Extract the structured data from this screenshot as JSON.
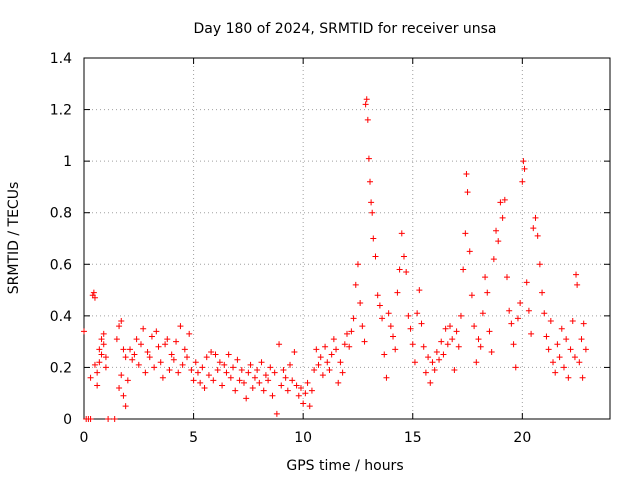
{
  "chart_data": {
    "type": "scatter",
    "title": "Day 180 of 2024, SRMTID for receiver unsa",
    "xlabel": "GPS time / hours",
    "ylabel": "SRMTID / TECUs",
    "xlim": [
      0,
      24
    ],
    "ylim": [
      0,
      1.4
    ],
    "xticks": [
      0,
      5,
      10,
      15,
      20
    ],
    "xtick_labels": [
      "0",
      "5",
      "10",
      "15",
      "20"
    ],
    "yticks": [
      0,
      0.2,
      0.4,
      0.6,
      0.8,
      1.0,
      1.2,
      1.4
    ],
    "ytick_labels": [
      "0",
      "0.2",
      "0.4",
      "0.6",
      "0.8",
      "1",
      "1.2",
      "1.4"
    ],
    "grid": true,
    "marker": "+",
    "color": "#ff0000",
    "series": [
      {
        "name": "SRMTID",
        "points": [
          [
            0.0,
            0.34
          ],
          [
            0.1,
            0.0
          ],
          [
            0.2,
            0.0
          ],
          [
            0.3,
            0.0
          ],
          [
            0.3,
            0.16
          ],
          [
            0.4,
            0.48
          ],
          [
            0.45,
            0.49
          ],
          [
            0.5,
            0.47
          ],
          [
            0.5,
            0.21
          ],
          [
            0.6,
            0.18
          ],
          [
            0.6,
            0.13
          ],
          [
            0.7,
            0.27
          ],
          [
            0.7,
            0.22
          ],
          [
            0.8,
            0.31
          ],
          [
            0.8,
            0.25
          ],
          [
            0.9,
            0.29
          ],
          [
            0.9,
            0.33
          ],
          [
            1.0,
            0.2
          ],
          [
            1.0,
            0.24
          ],
          [
            1.1,
            0.0
          ],
          [
            1.4,
            0.0
          ],
          [
            1.5,
            0.31
          ],
          [
            1.6,
            0.36
          ],
          [
            1.6,
            0.12
          ],
          [
            1.7,
            0.17
          ],
          [
            1.7,
            0.38
          ],
          [
            1.8,
            0.27
          ],
          [
            1.8,
            0.09
          ],
          [
            1.9,
            0.05
          ],
          [
            1.9,
            0.24
          ],
          [
            2.0,
            0.15
          ],
          [
            2.1,
            0.27
          ],
          [
            2.2,
            0.23
          ],
          [
            2.3,
            0.25
          ],
          [
            2.4,
            0.31
          ],
          [
            2.5,
            0.21
          ],
          [
            2.6,
            0.29
          ],
          [
            2.7,
            0.35
          ],
          [
            2.8,
            0.18
          ],
          [
            2.9,
            0.26
          ],
          [
            3.0,
            0.24
          ],
          [
            3.1,
            0.32
          ],
          [
            3.2,
            0.2
          ],
          [
            3.3,
            0.34
          ],
          [
            3.4,
            0.28
          ],
          [
            3.5,
            0.22
          ],
          [
            3.6,
            0.16
          ],
          [
            3.7,
            0.29
          ],
          [
            3.8,
            0.31
          ],
          [
            3.9,
            0.19
          ],
          [
            4.0,
            0.25
          ],
          [
            4.1,
            0.23
          ],
          [
            4.2,
            0.3
          ],
          [
            4.3,
            0.18
          ],
          [
            4.4,
            0.36
          ],
          [
            4.5,
            0.21
          ],
          [
            4.6,
            0.27
          ],
          [
            4.7,
            0.24
          ],
          [
            4.8,
            0.33
          ],
          [
            4.9,
            0.19
          ],
          [
            5.0,
            0.15
          ],
          [
            5.1,
            0.22
          ],
          [
            5.2,
            0.18
          ],
          [
            5.3,
            0.14
          ],
          [
            5.4,
            0.2
          ],
          [
            5.5,
            0.12
          ],
          [
            5.6,
            0.24
          ],
          [
            5.7,
            0.17
          ],
          [
            5.8,
            0.26
          ],
          [
            5.9,
            0.15
          ],
          [
            6.0,
            0.25
          ],
          [
            6.1,
            0.19
          ],
          [
            6.2,
            0.22
          ],
          [
            6.3,
            0.13
          ],
          [
            6.4,
            0.21
          ],
          [
            6.5,
            0.18
          ],
          [
            6.6,
            0.25
          ],
          [
            6.7,
            0.16
          ],
          [
            6.8,
            0.2
          ],
          [
            6.9,
            0.11
          ],
          [
            7.0,
            0.23
          ],
          [
            7.1,
            0.15
          ],
          [
            7.2,
            0.19
          ],
          [
            7.3,
            0.14
          ],
          [
            7.4,
            0.08
          ],
          [
            7.5,
            0.18
          ],
          [
            7.6,
            0.21
          ],
          [
            7.7,
            0.12
          ],
          [
            7.8,
            0.16
          ],
          [
            7.9,
            0.19
          ],
          [
            8.0,
            0.14
          ],
          [
            8.1,
            0.22
          ],
          [
            8.2,
            0.11
          ],
          [
            8.3,
            0.17
          ],
          [
            8.4,
            0.15
          ],
          [
            8.5,
            0.2
          ],
          [
            8.6,
            0.09
          ],
          [
            8.7,
            0.18
          ],
          [
            8.8,
            0.02
          ],
          [
            8.9,
            0.29
          ],
          [
            9.0,
            0.13
          ],
          [
            9.1,
            0.19
          ],
          [
            9.2,
            0.16
          ],
          [
            9.3,
            0.11
          ],
          [
            9.4,
            0.21
          ],
          [
            9.5,
            0.15
          ],
          [
            9.6,
            0.26
          ],
          [
            9.7,
            0.13
          ],
          [
            9.8,
            0.09
          ],
          [
            9.9,
            0.12
          ],
          [
            10.0,
            0.06
          ],
          [
            10.1,
            0.1
          ],
          [
            10.2,
            0.14
          ],
          [
            10.3,
            0.05
          ],
          [
            10.4,
            0.11
          ],
          [
            10.5,
            0.19
          ],
          [
            10.6,
            0.27
          ],
          [
            10.7,
            0.21
          ],
          [
            10.8,
            0.24
          ],
          [
            10.9,
            0.17
          ],
          [
            11.0,
            0.28
          ],
          [
            11.1,
            0.22
          ],
          [
            11.2,
            0.19
          ],
          [
            11.3,
            0.25
          ],
          [
            11.4,
            0.31
          ],
          [
            11.5,
            0.27
          ],
          [
            11.6,
            0.14
          ],
          [
            11.7,
            0.22
          ],
          [
            11.8,
            0.18
          ],
          [
            11.9,
            0.29
          ],
          [
            12.0,
            0.33
          ],
          [
            12.1,
            0.28
          ],
          [
            12.2,
            0.34
          ],
          [
            12.3,
            0.39
          ],
          [
            12.4,
            0.52
          ],
          [
            12.5,
            0.6
          ],
          [
            12.6,
            0.45
          ],
          [
            12.7,
            0.36
          ],
          [
            12.8,
            0.3
          ],
          [
            12.85,
            1.22
          ],
          [
            12.9,
            1.24
          ],
          [
            12.95,
            1.16
          ],
          [
            13.0,
            1.01
          ],
          [
            13.05,
            0.92
          ],
          [
            13.1,
            0.84
          ],
          [
            13.15,
            0.8
          ],
          [
            13.2,
            0.7
          ],
          [
            13.3,
            0.63
          ],
          [
            13.4,
            0.48
          ],
          [
            13.5,
            0.44
          ],
          [
            13.6,
            0.39
          ],
          [
            13.7,
            0.25
          ],
          [
            13.8,
            0.16
          ],
          [
            13.9,
            0.41
          ],
          [
            14.0,
            0.36
          ],
          [
            14.1,
            0.32
          ],
          [
            14.2,
            0.27
          ],
          [
            14.3,
            0.49
          ],
          [
            14.4,
            0.58
          ],
          [
            14.5,
            0.72
          ],
          [
            14.6,
            0.63
          ],
          [
            14.7,
            0.57
          ],
          [
            14.8,
            0.4
          ],
          [
            14.9,
            0.35
          ],
          [
            15.0,
            0.29
          ],
          [
            15.1,
            0.22
          ],
          [
            15.2,
            0.41
          ],
          [
            15.3,
            0.5
          ],
          [
            15.4,
            0.37
          ],
          [
            15.5,
            0.28
          ],
          [
            15.6,
            0.18
          ],
          [
            15.7,
            0.24
          ],
          [
            15.8,
            0.14
          ],
          [
            15.9,
            0.22
          ],
          [
            16.0,
            0.19
          ],
          [
            16.1,
            0.26
          ],
          [
            16.2,
            0.23
          ],
          [
            16.3,
            0.3
          ],
          [
            16.4,
            0.25
          ],
          [
            16.5,
            0.35
          ],
          [
            16.6,
            0.29
          ],
          [
            16.7,
            0.36
          ],
          [
            16.8,
            0.31
          ],
          [
            16.9,
            0.19
          ],
          [
            17.0,
            0.34
          ],
          [
            17.1,
            0.28
          ],
          [
            17.2,
            0.4
          ],
          [
            17.3,
            0.58
          ],
          [
            17.4,
            0.72
          ],
          [
            17.45,
            0.95
          ],
          [
            17.5,
            0.88
          ],
          [
            17.6,
            0.65
          ],
          [
            17.7,
            0.48
          ],
          [
            17.8,
            0.36
          ],
          [
            17.9,
            0.22
          ],
          [
            18.0,
            0.31
          ],
          [
            18.1,
            0.28
          ],
          [
            18.2,
            0.41
          ],
          [
            18.3,
            0.55
          ],
          [
            18.4,
            0.49
          ],
          [
            18.5,
            0.34
          ],
          [
            18.6,
            0.26
          ],
          [
            18.7,
            0.62
          ],
          [
            18.8,
            0.73
          ],
          [
            18.9,
            0.69
          ],
          [
            19.0,
            0.84
          ],
          [
            19.1,
            0.78
          ],
          [
            19.2,
            0.85
          ],
          [
            19.3,
            0.55
          ],
          [
            19.4,
            0.42
          ],
          [
            19.5,
            0.37
          ],
          [
            19.6,
            0.29
          ],
          [
            19.7,
            0.2
          ],
          [
            19.8,
            0.39
          ],
          [
            19.9,
            0.45
          ],
          [
            20.0,
            0.92
          ],
          [
            20.05,
            1.0
          ],
          [
            20.1,
            0.97
          ],
          [
            20.2,
            0.53
          ],
          [
            20.3,
            0.42
          ],
          [
            20.4,
            0.33
          ],
          [
            20.5,
            0.74
          ],
          [
            20.6,
            0.78
          ],
          [
            20.7,
            0.71
          ],
          [
            20.8,
            0.6
          ],
          [
            20.9,
            0.49
          ],
          [
            21.0,
            0.41
          ],
          [
            21.1,
            0.32
          ],
          [
            21.2,
            0.27
          ],
          [
            21.3,
            0.38
          ],
          [
            21.4,
            0.22
          ],
          [
            21.5,
            0.18
          ],
          [
            21.6,
            0.29
          ],
          [
            21.7,
            0.24
          ],
          [
            21.8,
            0.35
          ],
          [
            21.9,
            0.2
          ],
          [
            22.0,
            0.31
          ],
          [
            22.1,
            0.16
          ],
          [
            22.2,
            0.27
          ],
          [
            22.3,
            0.38
          ],
          [
            22.4,
            0.24
          ],
          [
            22.45,
            0.56
          ],
          [
            22.5,
            0.52
          ],
          [
            22.6,
            0.22
          ],
          [
            22.7,
            0.31
          ],
          [
            22.75,
            0.16
          ],
          [
            22.8,
            0.37
          ],
          [
            22.9,
            0.27
          ]
        ]
      }
    ]
  }
}
